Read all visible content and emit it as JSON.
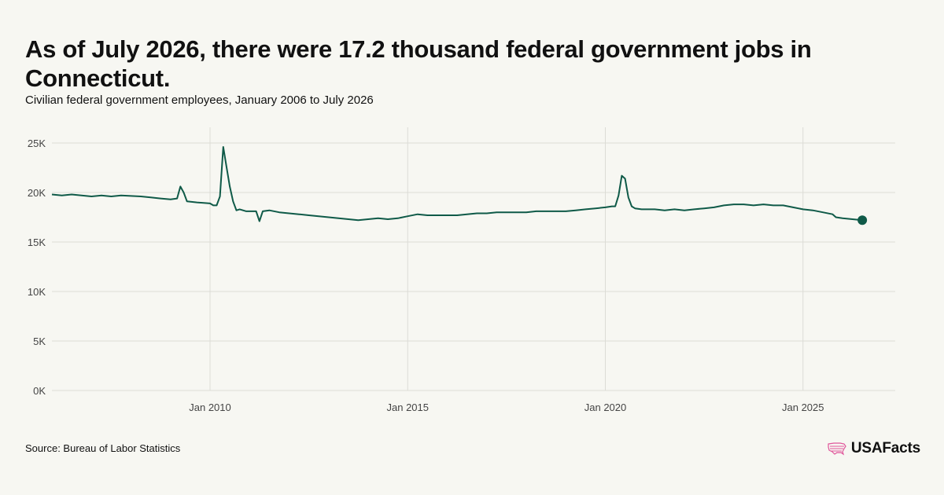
{
  "chart_data": {
    "type": "line",
    "title": "As of July 2026, there were 17.2 thousand federal government jobs in Connecticut.",
    "subtitle": "Civilian federal government employees, January 2006 to July 2026",
    "xlabel": "",
    "ylabel": "",
    "x_start": "2006-01",
    "x_end": "2026-07",
    "x_ticks": [
      {
        "label": "Jan 2010",
        "date": "2010-01"
      },
      {
        "label": "Jan 2015",
        "date": "2015-01"
      },
      {
        "label": "Jan 2020",
        "date": "2020-01"
      },
      {
        "label": "Jan 2025",
        "date": "2025-01"
      }
    ],
    "y_ticks": [
      {
        "label": "0K",
        "value": 0
      },
      {
        "label": "5K",
        "value": 5000
      },
      {
        "label": "10K",
        "value": 10000
      },
      {
        "label": "15K",
        "value": 15000
      },
      {
        "label": "20K",
        "value": 20000
      },
      {
        "label": "25K",
        "value": 25000
      }
    ],
    "ylim": [
      0,
      25000
    ],
    "grid": true,
    "legend": "none",
    "line_color": "#0f5a48",
    "series": [
      {
        "points": [
          [
            "2006-01",
            19800
          ],
          [
            "2006-04",
            19700
          ],
          [
            "2006-07",
            19800
          ],
          [
            "2006-10",
            19700
          ],
          [
            "2007-01",
            19600
          ],
          [
            "2007-04",
            19700
          ],
          [
            "2007-07",
            19600
          ],
          [
            "2007-10",
            19700
          ],
          [
            "2008-01",
            19650
          ],
          [
            "2008-04",
            19600
          ],
          [
            "2008-07",
            19500
          ],
          [
            "2008-10",
            19400
          ],
          [
            "2009-01",
            19300
          ],
          [
            "2009-03",
            19400
          ],
          [
            "2009-04",
            20600
          ],
          [
            "2009-05",
            20000
          ],
          [
            "2009-06",
            19100
          ],
          [
            "2009-09",
            19000
          ],
          [
            "2010-01",
            18900
          ],
          [
            "2010-02",
            18700
          ],
          [
            "2010-03",
            18700
          ],
          [
            "2010-04",
            19600
          ],
          [
            "2010-05",
            24600
          ],
          [
            "2010-06",
            22600
          ],
          [
            "2010-07",
            20600
          ],
          [
            "2010-08",
            19100
          ],
          [
            "2010-09",
            18200
          ],
          [
            "2010-10",
            18300
          ],
          [
            "2010-12",
            18100
          ],
          [
            "2011-01",
            18100
          ],
          [
            "2011-03",
            18100
          ],
          [
            "2011-04",
            17100
          ],
          [
            "2011-05",
            18100
          ],
          [
            "2011-07",
            18200
          ],
          [
            "2011-10",
            18000
          ],
          [
            "2012-01",
            17900
          ],
          [
            "2012-04",
            17800
          ],
          [
            "2012-07",
            17700
          ],
          [
            "2012-10",
            17600
          ],
          [
            "2013-01",
            17500
          ],
          [
            "2013-04",
            17400
          ],
          [
            "2013-07",
            17300
          ],
          [
            "2013-10",
            17200
          ],
          [
            "2014-01",
            17300
          ],
          [
            "2014-04",
            17400
          ],
          [
            "2014-07",
            17300
          ],
          [
            "2014-10",
            17400
          ],
          [
            "2015-01",
            17600
          ],
          [
            "2015-04",
            17800
          ],
          [
            "2015-07",
            17700
          ],
          [
            "2015-10",
            17700
          ],
          [
            "2016-01",
            17700
          ],
          [
            "2016-04",
            17700
          ],
          [
            "2016-07",
            17800
          ],
          [
            "2016-10",
            17900
          ],
          [
            "2017-01",
            17900
          ],
          [
            "2017-04",
            18000
          ],
          [
            "2017-07",
            18000
          ],
          [
            "2017-10",
            18000
          ],
          [
            "2018-01",
            18000
          ],
          [
            "2018-04",
            18100
          ],
          [
            "2018-07",
            18100
          ],
          [
            "2018-10",
            18100
          ],
          [
            "2019-01",
            18100
          ],
          [
            "2019-04",
            18200
          ],
          [
            "2019-07",
            18300
          ],
          [
            "2019-10",
            18400
          ],
          [
            "2020-01",
            18500
          ],
          [
            "2020-03",
            18600
          ],
          [
            "2020-04",
            18600
          ],
          [
            "2020-05",
            19700
          ],
          [
            "2020-06",
            21700
          ],
          [
            "2020-07",
            21400
          ],
          [
            "2020-08",
            19500
          ],
          [
            "2020-09",
            18600
          ],
          [
            "2020-10",
            18400
          ],
          [
            "2020-12",
            18300
          ],
          [
            "2021-01",
            18300
          ],
          [
            "2021-04",
            18300
          ],
          [
            "2021-07",
            18200
          ],
          [
            "2021-10",
            18300
          ],
          [
            "2022-01",
            18200
          ],
          [
            "2022-04",
            18300
          ],
          [
            "2022-07",
            18400
          ],
          [
            "2022-10",
            18500
          ],
          [
            "2023-01",
            18700
          ],
          [
            "2023-04",
            18800
          ],
          [
            "2023-07",
            18800
          ],
          [
            "2023-10",
            18700
          ],
          [
            "2024-01",
            18800
          ],
          [
            "2024-04",
            18700
          ],
          [
            "2024-07",
            18700
          ],
          [
            "2024-10",
            18500
          ],
          [
            "2025-01",
            18300
          ],
          [
            "2025-04",
            18200
          ],
          [
            "2025-07",
            18000
          ],
          [
            "2025-10",
            17800
          ],
          [
            "2025-11",
            17500
          ],
          [
            "2026-01",
            17400
          ],
          [
            "2026-04",
            17300
          ],
          [
            "2026-07",
            17200
          ]
        ]
      }
    ]
  },
  "source": "Source: Bureau of Labor Statistics",
  "brand": {
    "name": "USAFacts",
    "logo_icon": "usa-map-icon",
    "logo_color": "#e0559a"
  }
}
